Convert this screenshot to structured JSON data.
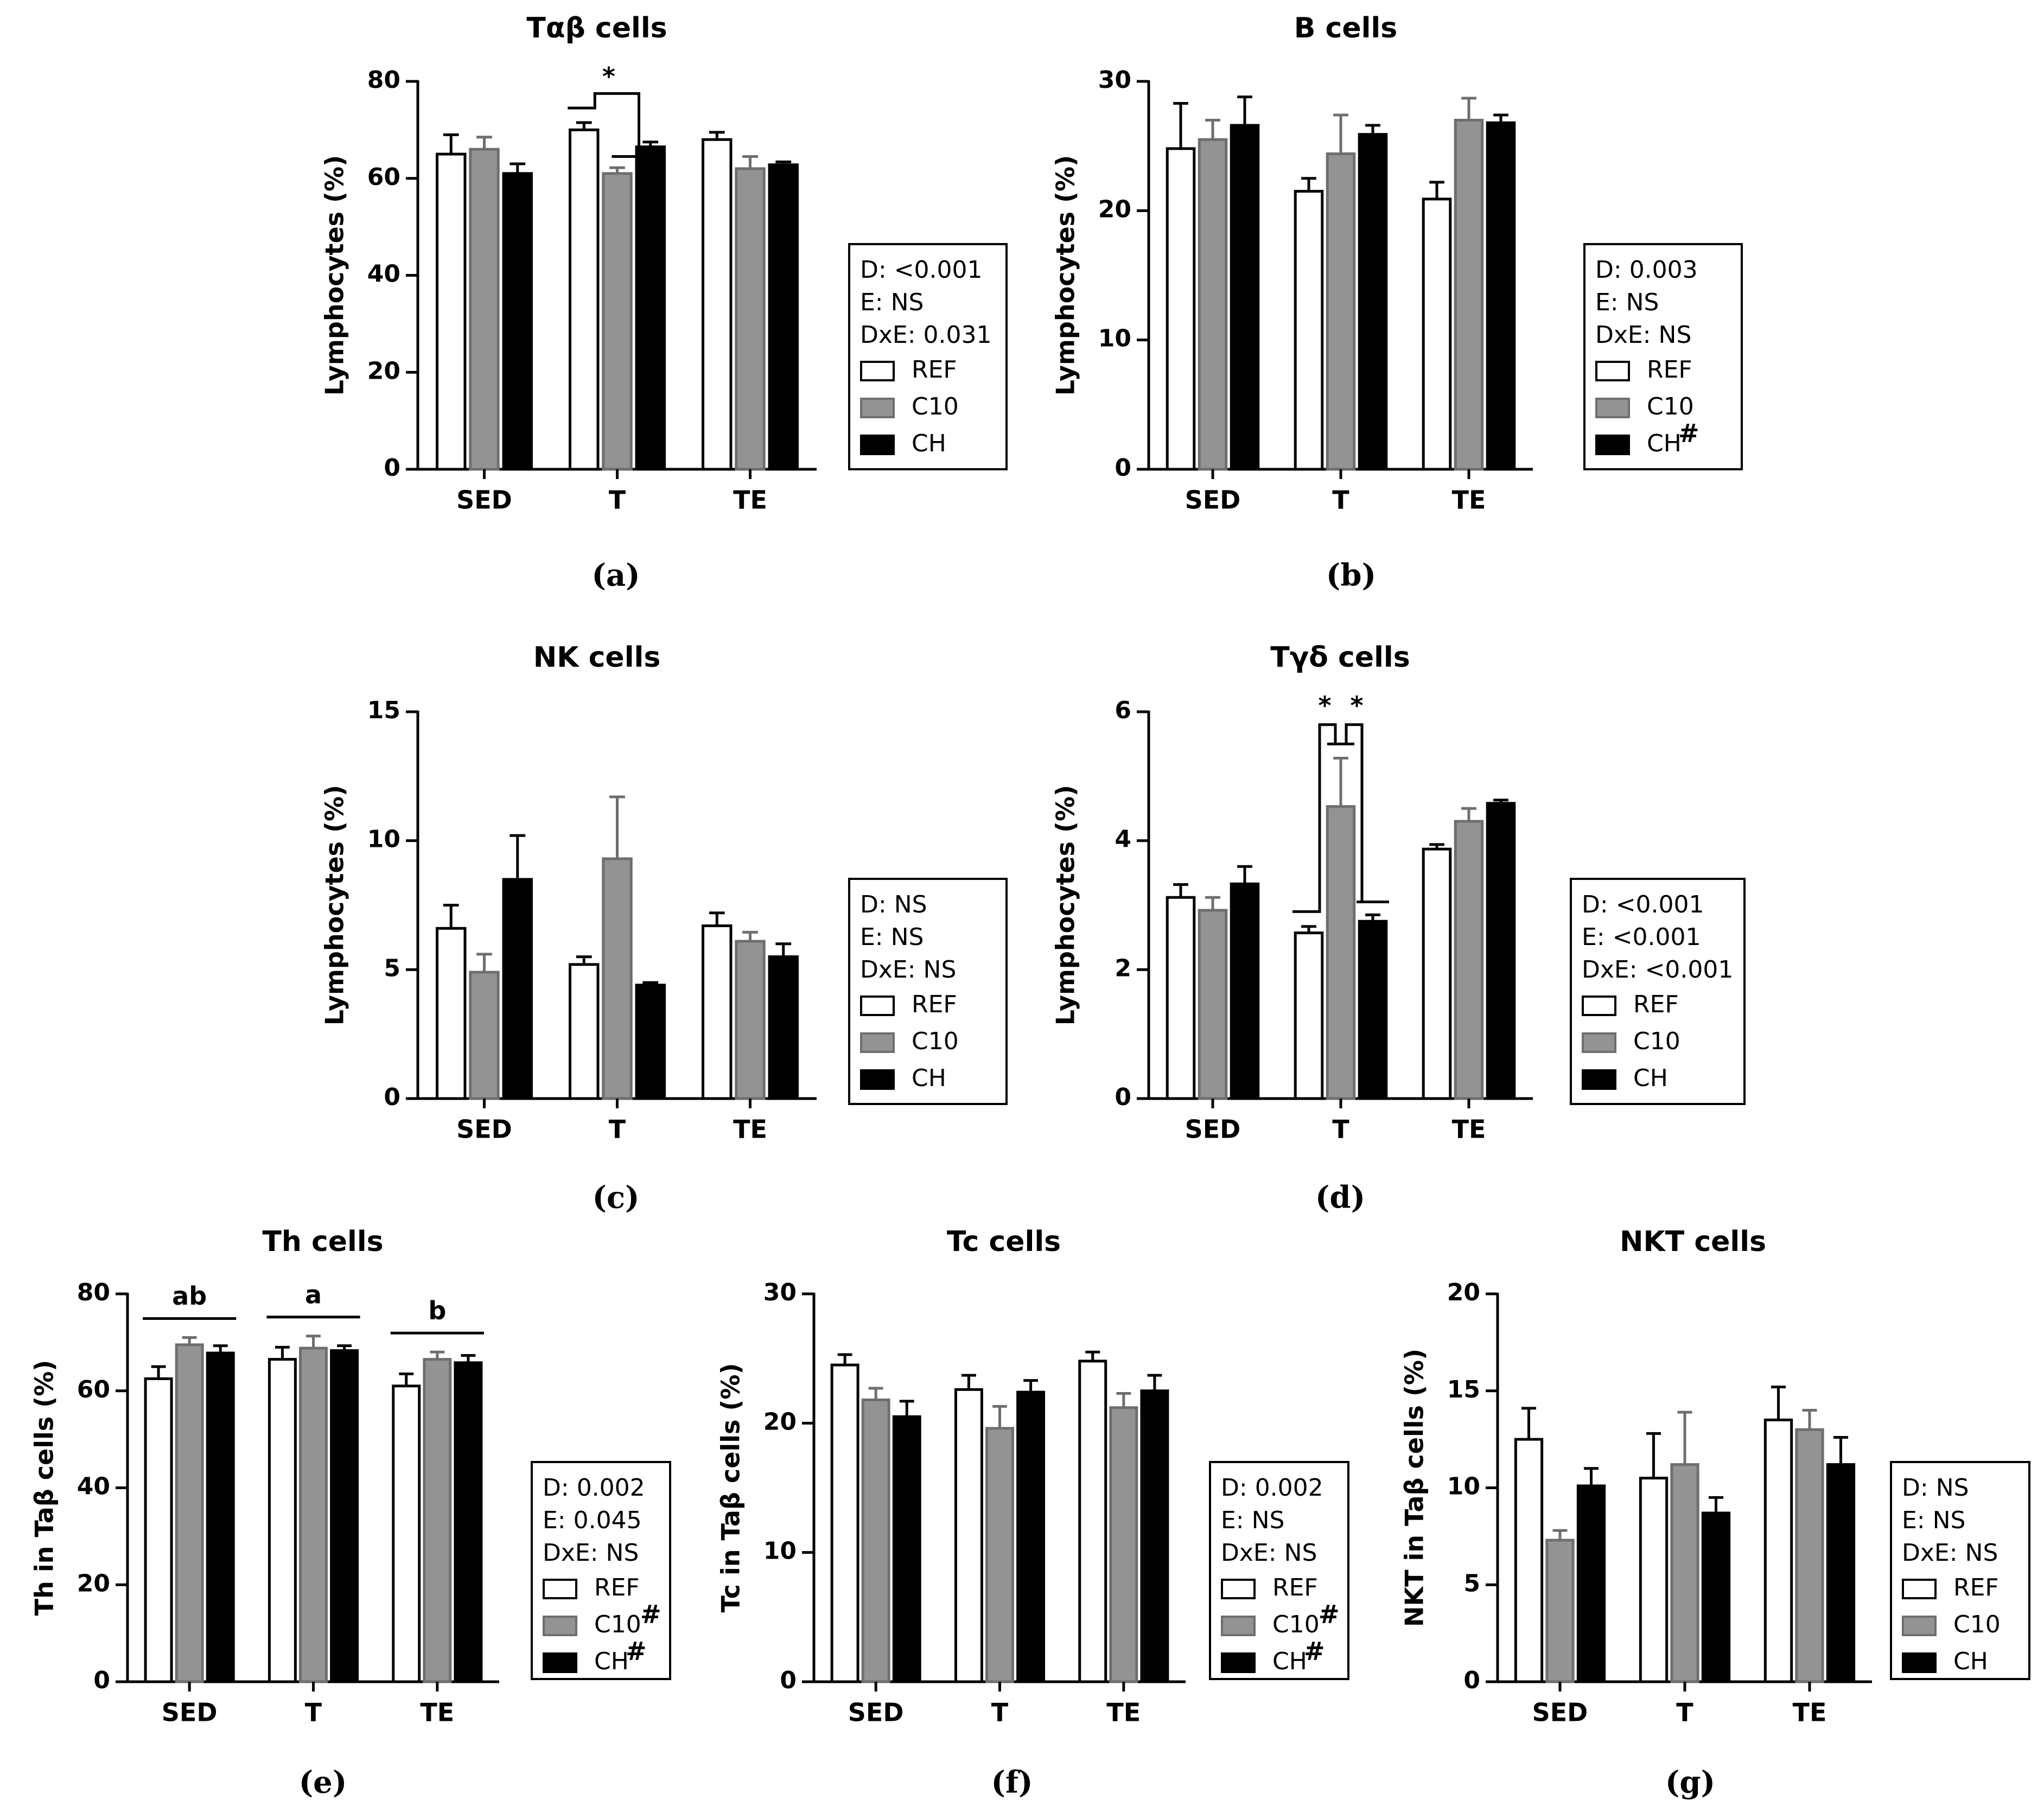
{
  "colors": {
    "REF": "#ffffff",
    "C10": "#939393",
    "CH": "#000000",
    "axis": "#000000"
  },
  "legend_labels": [
    "REF",
    "C10",
    "CH"
  ],
  "chart_data": [
    {
      "id": "a",
      "panel_label": "(a)",
      "type": "bar",
      "title": "Tαβ cells",
      "ylabel": "Lymphocytes (%)",
      "categories": [
        "SED",
        "T",
        "TE"
      ],
      "ylim": [
        0,
        80
      ],
      "yticks": [
        "0",
        "20",
        "40",
        "60",
        "80"
      ],
      "series": [
        {
          "name": "REF",
          "values": [
            65,
            70,
            68
          ],
          "errors": [
            4,
            1.5,
            1.5
          ]
        },
        {
          "name": "C10",
          "values": [
            66,
            61,
            62
          ],
          "errors": [
            2.5,
            1.2,
            2.5
          ]
        },
        {
          "name": "CH",
          "values": [
            61,
            66.5,
            62.8
          ],
          "errors": [
            2,
            1,
            0.6
          ]
        }
      ],
      "stats": [
        "D: <0.001",
        "E: NS",
        "DxE: 0.031"
      ],
      "legend_marks": [
        "",
        "",
        ""
      ],
      "sig_star": "*",
      "group_letters": []
    },
    {
      "id": "b",
      "panel_label": "(b)",
      "type": "bar",
      "title": "B cells",
      "ylabel": "Lymphocytes (%)",
      "categories": [
        "SED",
        "T",
        "TE"
      ],
      "ylim": [
        0,
        30
      ],
      "yticks": [
        "0",
        "10",
        "20",
        "30"
      ],
      "series": [
        {
          "name": "REF",
          "values": [
            24.8,
            21.5,
            20.9
          ],
          "errors": [
            3.5,
            1,
            1.3
          ]
        },
        {
          "name": "C10",
          "values": [
            25.5,
            24.4,
            27
          ],
          "errors": [
            1.5,
            3,
            1.7
          ]
        },
        {
          "name": "CH",
          "values": [
            26.6,
            25.9,
            26.8
          ],
          "errors": [
            2.2,
            0.7,
            0.6
          ]
        }
      ],
      "stats": [
        "D: 0.003",
        "E: NS",
        "DxE: NS"
      ],
      "legend_marks": [
        "",
        "",
        "#"
      ],
      "group_letters": []
    },
    {
      "id": "c",
      "panel_label": "(c)",
      "type": "bar",
      "title": "NK cells",
      "ylabel": "Lymphocytes (%)",
      "categories": [
        "SED",
        "T",
        "TE"
      ],
      "ylim": [
        0,
        15
      ],
      "yticks": [
        "0",
        "5",
        "10",
        "15"
      ],
      "series": [
        {
          "name": "REF",
          "values": [
            6.6,
            5.2,
            6.7
          ],
          "errors": [
            0.9,
            0.3,
            0.5
          ]
        },
        {
          "name": "C10",
          "values": [
            4.9,
            9.3,
            6.1
          ],
          "errors": [
            0.7,
            2.4,
            0.35
          ]
        },
        {
          "name": "CH",
          "values": [
            8.5,
            4.4,
            5.5
          ],
          "errors": [
            1.7,
            0.1,
            0.5
          ]
        }
      ],
      "stats": [
        "D: NS",
        "E: NS",
        "DxE: NS"
      ],
      "legend_marks": [
        "",
        "",
        ""
      ],
      "group_letters": []
    },
    {
      "id": "d",
      "panel_label": "(d)",
      "type": "bar",
      "title": "Tγδ cells",
      "ylabel": "Lymphocytes (%)",
      "categories": [
        "SED",
        "T",
        "TE"
      ],
      "ylim": [
        0,
        6
      ],
      "yticks": [
        "0",
        "2",
        "4",
        "6"
      ],
      "series": [
        {
          "name": "REF",
          "values": [
            3.12,
            2.57,
            3.87
          ],
          "errors": [
            0.2,
            0.1,
            0.07
          ]
        },
        {
          "name": "C10",
          "values": [
            2.92,
            4.53,
            4.3
          ],
          "errors": [
            0.2,
            0.75,
            0.2
          ]
        },
        {
          "name": "CH",
          "values": [
            3.33,
            2.75,
            4.58
          ],
          "errors": [
            0.27,
            0.1,
            0.05
          ]
        }
      ],
      "stats": [
        "D: <0.001",
        "E: <0.001",
        "DxE: <0.001"
      ],
      "legend_marks": [
        "",
        "",
        ""
      ],
      "sig_star": "*",
      "group_letters": []
    },
    {
      "id": "e",
      "panel_label": "(e)",
      "type": "bar",
      "title": "Th cells",
      "ylabel": "Th in Taβ cells (%)",
      "categories": [
        "SED",
        "T",
        "TE"
      ],
      "ylim": [
        0,
        80
      ],
      "yticks": [
        "0",
        "20",
        "40",
        "60",
        "80"
      ],
      "series": [
        {
          "name": "REF",
          "values": [
            62.5,
            66.5,
            61
          ],
          "errors": [
            2.5,
            2.5,
            2.5
          ]
        },
        {
          "name": "C10",
          "values": [
            69.5,
            68.8,
            66.5
          ],
          "errors": [
            1.5,
            2.5,
            1.5
          ]
        },
        {
          "name": "CH",
          "values": [
            67.8,
            68.3,
            65.8
          ],
          "errors": [
            1.5,
            1,
            1.5
          ]
        }
      ],
      "stats": [
        "D: 0.002",
        "E: 0.045",
        "DxE: NS"
      ],
      "legend_marks": [
        "",
        "#",
        "#"
      ],
      "group_letters": [
        "ab",
        "a",
        "b"
      ]
    },
    {
      "id": "f",
      "panel_label": "(f)",
      "type": "bar",
      "title": "Tc cells",
      "ylabel": "Tc in Taβ cells (%)",
      "categories": [
        "SED",
        "T",
        "TE"
      ],
      "ylim": [
        0,
        30
      ],
      "yticks": [
        "0",
        "10",
        "20",
        "30"
      ],
      "series": [
        {
          "name": "REF",
          "values": [
            24.5,
            22.6,
            24.8
          ],
          "errors": [
            0.8,
            1.1,
            0.7
          ]
        },
        {
          "name": "C10",
          "values": [
            21.8,
            19.6,
            21.2
          ],
          "errors": [
            0.9,
            1.7,
            1.1
          ]
        },
        {
          "name": "CH",
          "values": [
            20.5,
            22.4,
            22.5
          ],
          "errors": [
            1.2,
            0.9,
            1.2
          ]
        }
      ],
      "stats": [
        "D: 0.002",
        "E: NS",
        "DxE: NS"
      ],
      "legend_marks": [
        "",
        "#",
        "#"
      ],
      "group_letters": []
    },
    {
      "id": "g",
      "panel_label": "(g)",
      "type": "bar",
      "title": "NKT cells",
      "ylabel": "NKT in Taβ cells (%)",
      "categories": [
        "SED",
        "T",
        "TE"
      ],
      "ylim": [
        0,
        20
      ],
      "yticks": [
        "0",
        "5",
        "10",
        "15",
        "20"
      ],
      "series": [
        {
          "name": "REF",
          "values": [
            12.5,
            10.5,
            13.5
          ],
          "errors": [
            1.6,
            2.3,
            1.7
          ]
        },
        {
          "name": "C10",
          "values": [
            7.3,
            11.2,
            13
          ],
          "errors": [
            0.5,
            2.7,
            1
          ]
        },
        {
          "name": "CH",
          "values": [
            10.1,
            8.7,
            11.2
          ],
          "errors": [
            0.9,
            0.8,
            1.4
          ]
        }
      ],
      "stats": [
        "D: NS",
        "E: NS",
        "DxE: NS"
      ],
      "legend_marks": [
        "",
        "",
        ""
      ],
      "group_letters": []
    }
  ]
}
